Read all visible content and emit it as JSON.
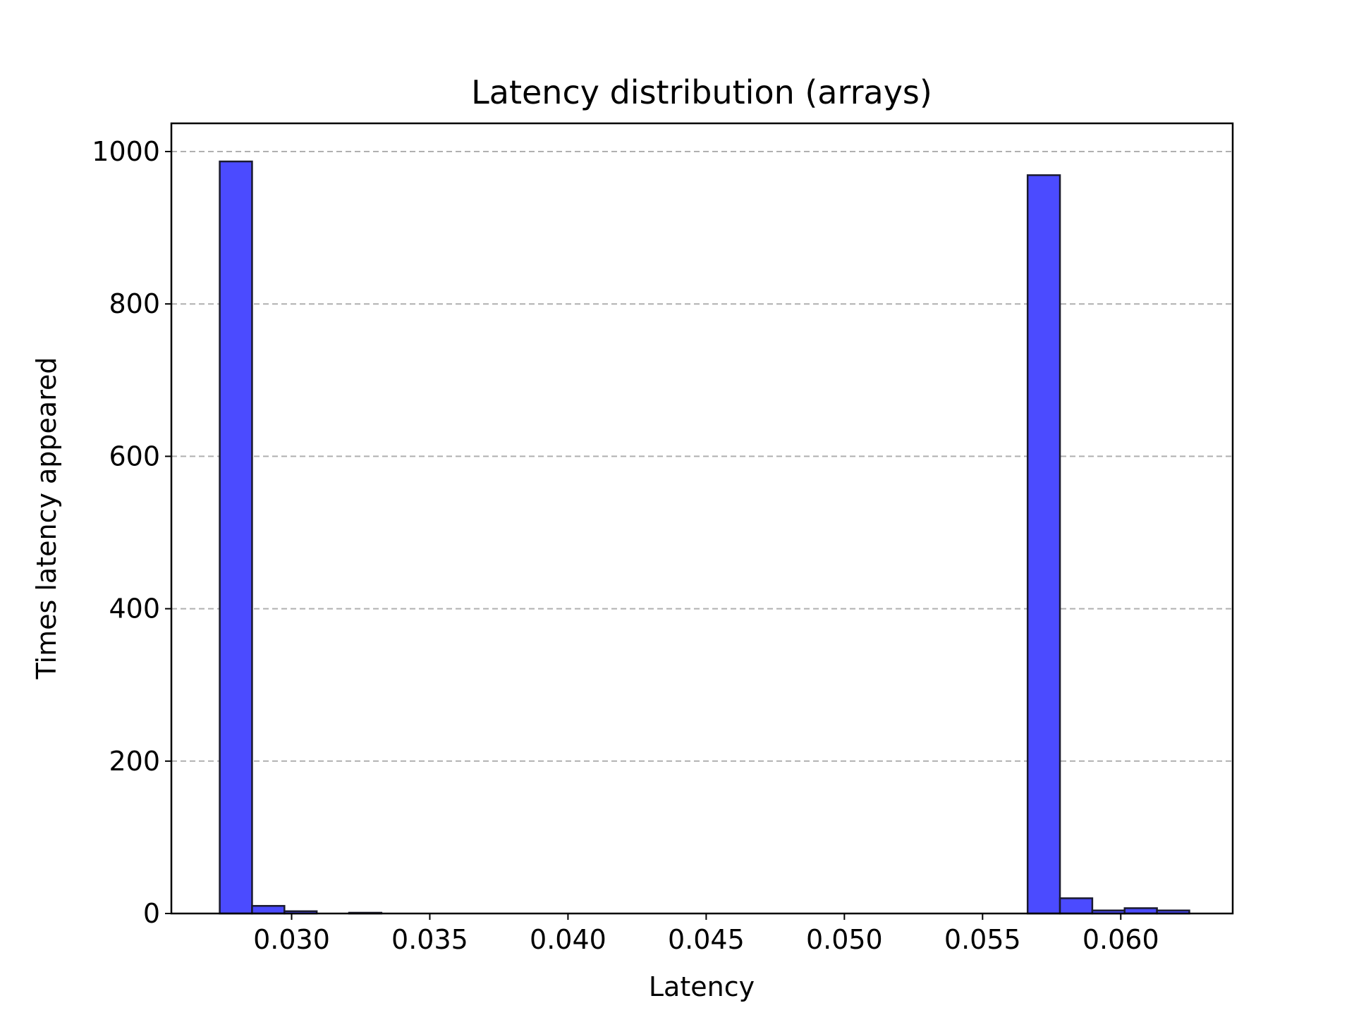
{
  "chart_data": {
    "type": "bar",
    "title": "Latency distribution (arrays)",
    "xlabel": "Latency",
    "ylabel": "Times latency appeared",
    "xlim": [
      0.02565,
      0.06405
    ],
    "ylim": [
      0,
      1037
    ],
    "xticks": [
      "0.030",
      "0.035",
      "0.040",
      "0.045",
      "0.050",
      "0.055",
      "0.060"
    ],
    "xtick_values": [
      0.03,
      0.035,
      0.04,
      0.045,
      0.05,
      0.055,
      0.06
    ],
    "yticks": [
      "0",
      "200",
      "400",
      "600",
      "800",
      "1000"
    ],
    "ytick_values": [
      0,
      200,
      400,
      600,
      800,
      1000
    ],
    "grid": "y-dashed",
    "bar_color": "#4b4bff",
    "edge_color": "#1a1a2e",
    "bins": [
      {
        "x0": 0.0274,
        "x1": 0.02857,
        "value": 987
      },
      {
        "x0": 0.02857,
        "x1": 0.02974,
        "value": 10
      },
      {
        "x0": 0.02974,
        "x1": 0.03091,
        "value": 3
      },
      {
        "x0": 0.03091,
        "x1": 0.03208,
        "value": 0
      },
      {
        "x0": 0.03208,
        "x1": 0.03325,
        "value": 1
      },
      {
        "x0": 0.05663,
        "x1": 0.0578,
        "value": 969
      },
      {
        "x0": 0.0578,
        "x1": 0.05897,
        "value": 20
      },
      {
        "x0": 0.05897,
        "x1": 0.06014,
        "value": 4
      },
      {
        "x0": 0.06014,
        "x1": 0.06131,
        "value": 7
      },
      {
        "x0": 0.06131,
        "x1": 0.06248,
        "value": 4
      }
    ]
  }
}
